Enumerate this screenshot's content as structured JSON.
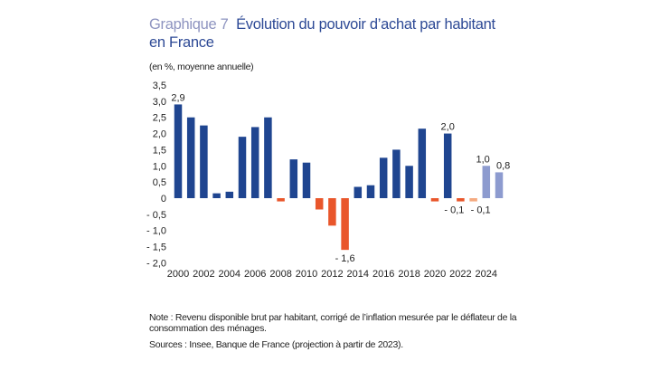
{
  "header": {
    "number": "Graphique 7",
    "title": "Évolution du pouvoir d’achat par habitant en France",
    "unit": "(en %, moyenne annuelle)"
  },
  "footer": {
    "note": "Note : Revenu disponible brut par habitant, corrigé de l’inflation mesurée par le déflateur de la consommation des ménages.",
    "sources": "Sources : Insee, Banque de France (projection à partir de 2023)."
  },
  "chart_data": {
    "type": "bar",
    "title": "Évolution du pouvoir d’achat par habitant en France",
    "ylabel": "(en %, moyenne annuelle)",
    "ylim": [
      -2.0,
      3.5
    ],
    "yticks": [
      3.5,
      3.0,
      2.5,
      2.0,
      1.5,
      1.0,
      0.5,
      0,
      -0.5,
      -1.0,
      -1.5,
      -2.0
    ],
    "ytick_labels": [
      "3,5",
      "3,0",
      "2,5",
      "2,0",
      "1,5",
      "1,0",
      "0,5",
      "0",
      "- 0,5",
      "- 1,0",
      "- 1,5",
      "- 2,0"
    ],
    "xtick_labels": [
      "2000",
      "2002",
      "2004",
      "2006",
      "2008",
      "2010",
      "2012",
      "2014",
      "2016",
      "2018",
      "2020",
      "2022",
      "2024"
    ],
    "categories": [
      2000,
      2001,
      2002,
      2003,
      2004,
      2005,
      2006,
      2007,
      2008,
      2009,
      2010,
      2011,
      2012,
      2013,
      2014,
      2015,
      2016,
      2017,
      2018,
      2019,
      2020,
      2021,
      2022,
      2023,
      2024,
      2025
    ],
    "values": [
      2.9,
      2.5,
      2.25,
      0.15,
      0.2,
      1.9,
      2.2,
      2.5,
      -0.1,
      1.2,
      1.1,
      -0.35,
      -0.85,
      -1.6,
      0.35,
      0.4,
      1.25,
      1.5,
      1.0,
      2.15,
      -0.1,
      2.0,
      -0.1,
      -0.1,
      1.0,
      0.8
    ],
    "projection_from": 2023,
    "data_labels": [
      {
        "year": 2000,
        "text": "2,9"
      },
      {
        "year": 2013,
        "text": "- 1,6"
      },
      {
        "year": 2021,
        "text": "2,0"
      },
      {
        "year": 2022,
        "text": "- 0,1"
      },
      {
        "year": 2023,
        "text": "- 0,1"
      },
      {
        "year": 2024,
        "text": "1,0"
      },
      {
        "year": 2025,
        "text": "0,8"
      }
    ],
    "colors": {
      "positive": "#1f4590",
      "negative": "#e9562b",
      "projection_positive": "#8d9bcf",
      "projection_negative": "#f5aa80"
    },
    "grid": false,
    "legend": "none"
  }
}
